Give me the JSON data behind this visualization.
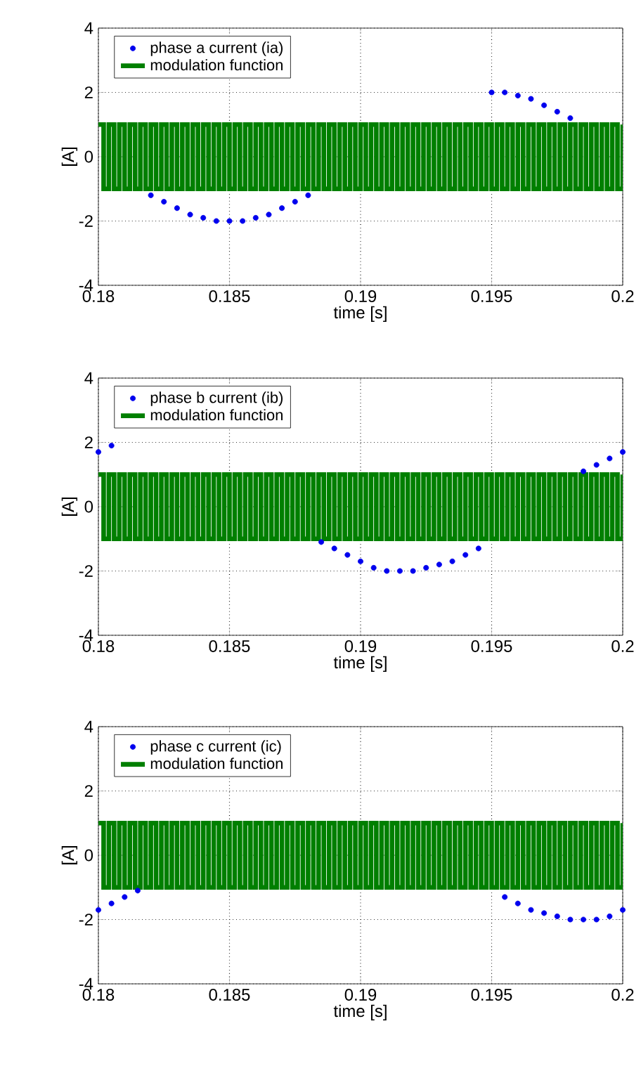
{
  "chart_data": [
    {
      "type": "scatter",
      "xlabel": "time [s]",
      "ylabel": "[A]",
      "xlim": [
        0.18,
        0.2
      ],
      "ylim": [
        -4,
        4
      ],
      "xticks": [
        0.18,
        0.185,
        0.19,
        0.195,
        0.2
      ],
      "yticks": [
        -4,
        -2,
        0,
        2,
        4
      ],
      "grid": true,
      "legend": "top left",
      "series": [
        {
          "name": "phase a current (ia)",
          "color": "#0000ee",
          "marker": "circle",
          "x": [
            0.182,
            0.1825,
            0.183,
            0.1835,
            0.184,
            0.1845,
            0.185,
            0.1855,
            0.186,
            0.1865,
            0.187,
            0.1875,
            0.188,
            0.195,
            0.1955,
            0.196,
            0.1965,
            0.197,
            0.1975,
            0.198
          ],
          "values": [
            -1.2,
            -1.4,
            -1.6,
            -1.8,
            -1.9,
            -2.0,
            -2.0,
            -2.0,
            -1.9,
            -1.8,
            -1.6,
            -1.4,
            -1.2,
            2.0,
            2.0,
            1.9,
            1.8,
            1.6,
            1.4,
            1.2
          ]
        },
        {
          "name": "modulation function",
          "type": "step",
          "color": "#007f00",
          "x": [
            0.18,
            0.1802,
            0.1804,
            0.1806,
            0.1808,
            0.181,
            0.1812,
            0.1814,
            0.1816,
            0.1818,
            0.182,
            0.1822,
            0.1824,
            0.1826,
            0.1828,
            0.183,
            0.1832,
            0.1834,
            0.1836,
            0.1838,
            0.184,
            0.1842,
            0.1844,
            0.1846,
            0.1848,
            0.185,
            0.1852,
            0.1854,
            0.1856,
            0.1858,
            0.186,
            0.1862,
            0.1864,
            0.1866,
            0.1868,
            0.187,
            0.1872,
            0.1874,
            0.1876,
            0.1878,
            0.188,
            0.1882,
            0.1884,
            0.1886,
            0.1888,
            0.189,
            0.1892,
            0.1894,
            0.1896,
            0.1898,
            0.19,
            0.1902,
            0.1904,
            0.1906,
            0.1908,
            0.191,
            0.1912,
            0.1914,
            0.1916,
            0.1918,
            0.192,
            0.1922,
            0.1924,
            0.1926,
            0.1928,
            0.193,
            0.1932,
            0.1934,
            0.1936,
            0.1938,
            0.194,
            0.1942,
            0.1944,
            0.1946,
            0.1948,
            0.195,
            0.1952,
            0.1954,
            0.1956,
            0.1958,
            0.196,
            0.1962,
            0.1964,
            0.1966,
            0.1968,
            0.197,
            0.1972,
            0.1974,
            0.1976,
            0.1978,
            0.198,
            0.1982,
            0.1984,
            0.1986,
            0.1988,
            0.199,
            0.1992,
            0.1994,
            0.1996,
            0.1998,
            0.2
          ],
          "values": [
            1,
            -1,
            1,
            -1,
            1,
            -1,
            1,
            -1,
            1,
            -1,
            1,
            -1,
            1,
            -1,
            1,
            -1,
            1,
            -1,
            1,
            -1,
            1,
            -1,
            1,
            -1,
            1,
            -1,
            1,
            -1,
            1,
            -1,
            1,
            -1,
            1,
            -1,
            1,
            -1,
            1,
            -1,
            1,
            -1,
            1,
            -1,
            1,
            -1,
            1,
            -1,
            1,
            -1,
            1,
            -1,
            1,
            -1,
            1,
            -1,
            1,
            -1,
            1,
            -1,
            1,
            -1,
            1,
            -1,
            1,
            -1,
            1,
            -1,
            1,
            -1,
            1,
            -1,
            1,
            -1,
            1,
            -1,
            1,
            -1,
            1,
            -1,
            1,
            -1,
            1,
            -1,
            1,
            -1,
            1,
            -1,
            1,
            -1,
            1,
            -1,
            1,
            -1,
            1,
            -1,
            1,
            -1,
            1,
            -1,
            1,
            -1,
            1
          ]
        }
      ]
    },
    {
      "type": "scatter",
      "xlabel": "time [s]",
      "ylabel": "[A]",
      "xlim": [
        0.18,
        0.2
      ],
      "ylim": [
        -4,
        4
      ],
      "xticks": [
        0.18,
        0.185,
        0.19,
        0.195,
        0.2
      ],
      "yticks": [
        -4,
        -2,
        0,
        2,
        4
      ],
      "grid": true,
      "legend": "top left",
      "series": [
        {
          "name": "phase b current (ib)",
          "color": "#0000ee",
          "marker": "circle",
          "x": [
            0.18,
            0.1805,
            0.1885,
            0.189,
            0.1895,
            0.19,
            0.1905,
            0.191,
            0.1915,
            0.192,
            0.1925,
            0.193,
            0.1935,
            0.194,
            0.1945,
            0.1985,
            0.199,
            0.1995,
            0.2
          ],
          "values": [
            1.7,
            1.9,
            -1.1,
            -1.3,
            -1.5,
            -1.7,
            -1.9,
            -2.0,
            -2.0,
            -2.0,
            -1.9,
            -1.8,
            -1.7,
            -1.5,
            -1.3,
            1.1,
            1.3,
            1.5,
            1.7
          ]
        },
        {
          "name": "modulation function",
          "type": "step",
          "color": "#007f00",
          "x": [
            0.18,
            0.1802,
            0.1804,
            0.1806,
            0.1808,
            0.181,
            0.1812,
            0.1814,
            0.1816,
            0.1818,
            0.182,
            0.1822,
            0.1824,
            0.1826,
            0.1828,
            0.183,
            0.1832,
            0.1834,
            0.1836,
            0.1838,
            0.184,
            0.1842,
            0.1844,
            0.1846,
            0.1848,
            0.185,
            0.1852,
            0.1854,
            0.1856,
            0.1858,
            0.186,
            0.1862,
            0.1864,
            0.1866,
            0.1868,
            0.187,
            0.1872,
            0.1874,
            0.1876,
            0.1878,
            0.188,
            0.1882,
            0.1884,
            0.1886,
            0.1888,
            0.189,
            0.1892,
            0.1894,
            0.1896,
            0.1898,
            0.19,
            0.1902,
            0.1904,
            0.1906,
            0.1908,
            0.191,
            0.1912,
            0.1914,
            0.1916,
            0.1918,
            0.192,
            0.1922,
            0.1924,
            0.1926,
            0.1928,
            0.193,
            0.1932,
            0.1934,
            0.1936,
            0.1938,
            0.194,
            0.1942,
            0.1944,
            0.1946,
            0.1948,
            0.195,
            0.1952,
            0.1954,
            0.1956,
            0.1958,
            0.196,
            0.1962,
            0.1964,
            0.1966,
            0.1968,
            0.197,
            0.1972,
            0.1974,
            0.1976,
            0.1978,
            0.198,
            0.1982,
            0.1984,
            0.1986,
            0.1988,
            0.199,
            0.1992,
            0.1994,
            0.1996,
            0.1998,
            0.2
          ],
          "values": [
            1,
            -1,
            1,
            -1,
            1,
            -1,
            1,
            -1,
            1,
            -1,
            1,
            -1,
            1,
            -1,
            1,
            -1,
            1,
            -1,
            1,
            -1,
            1,
            -1,
            1,
            -1,
            1,
            -1,
            1,
            -1,
            1,
            -1,
            1,
            -1,
            1,
            -1,
            1,
            -1,
            1,
            -1,
            1,
            -1,
            1,
            -1,
            1,
            -1,
            1,
            -1,
            1,
            -1,
            1,
            -1,
            1,
            -1,
            1,
            -1,
            1,
            -1,
            1,
            -1,
            1,
            -1,
            1,
            -1,
            1,
            -1,
            1,
            -1,
            1,
            -1,
            1,
            -1,
            1,
            -1,
            1,
            -1,
            1,
            -1,
            1,
            -1,
            1,
            -1,
            1,
            -1,
            1,
            -1,
            1,
            -1,
            1,
            -1,
            1,
            -1,
            1,
            -1,
            1,
            -1,
            1,
            -1,
            1,
            -1,
            1,
            -1,
            1
          ]
        }
      ]
    },
    {
      "type": "scatter",
      "xlabel": "time [s]",
      "ylabel": "[A]",
      "xlim": [
        0.18,
        0.2
      ],
      "ylim": [
        -4,
        4
      ],
      "xticks": [
        0.18,
        0.185,
        0.19,
        0.195,
        0.2
      ],
      "yticks": [
        -4,
        -2,
        0,
        2,
        4
      ],
      "grid": true,
      "legend": "top left",
      "series": [
        {
          "name": "phase c current (ic)",
          "color": "#0000ee",
          "marker": "circle",
          "x": [
            0.18,
            0.1805,
            0.181,
            0.1815,
            0.1955,
            0.196,
            0.1965,
            0.197,
            0.1975,
            0.198,
            0.1985,
            0.199,
            0.1995,
            0.2
          ],
          "values": [
            -1.7,
            -1.5,
            -1.3,
            -1.1,
            -1.3,
            -1.5,
            -1.7,
            -1.8,
            -1.9,
            -2.0,
            -2.0,
            -2.0,
            -1.9,
            -1.7
          ]
        },
        {
          "name": "modulation function",
          "type": "step",
          "color": "#007f00",
          "x": [
            0.18,
            0.1802,
            0.1804,
            0.1806,
            0.1808,
            0.181,
            0.1812,
            0.1814,
            0.1816,
            0.1818,
            0.182,
            0.1822,
            0.1824,
            0.1826,
            0.1828,
            0.183,
            0.1832,
            0.1834,
            0.1836,
            0.1838,
            0.184,
            0.1842,
            0.1844,
            0.1846,
            0.1848,
            0.185,
            0.1852,
            0.1854,
            0.1856,
            0.1858,
            0.186,
            0.1862,
            0.1864,
            0.1866,
            0.1868,
            0.187,
            0.1872,
            0.1874,
            0.1876,
            0.1878,
            0.188,
            0.1882,
            0.1884,
            0.1886,
            0.1888,
            0.189,
            0.1892,
            0.1894,
            0.1896,
            0.1898,
            0.19,
            0.1902,
            0.1904,
            0.1906,
            0.1908,
            0.191,
            0.1912,
            0.1914,
            0.1916,
            0.1918,
            0.192,
            0.1922,
            0.1924,
            0.1926,
            0.1928,
            0.193,
            0.1932,
            0.1934,
            0.1936,
            0.1938,
            0.194,
            0.1942,
            0.1944,
            0.1946,
            0.1948,
            0.195,
            0.1952,
            0.1954,
            0.1956,
            0.1958,
            0.196,
            0.1962,
            0.1964,
            0.1966,
            0.1968,
            0.197,
            0.1972,
            0.1974,
            0.1976,
            0.1978,
            0.198,
            0.1982,
            0.1984,
            0.1986,
            0.1988,
            0.199,
            0.1992,
            0.1994,
            0.1996,
            0.1998,
            0.2
          ],
          "values": [
            1,
            -1,
            1,
            -1,
            1,
            -1,
            1,
            -1,
            1,
            -1,
            1,
            -1,
            1,
            -1,
            1,
            -1,
            1,
            -1,
            1,
            -1,
            1,
            -1,
            1,
            -1,
            1,
            -1,
            1,
            -1,
            1,
            -1,
            1,
            -1,
            1,
            -1,
            1,
            -1,
            1,
            -1,
            1,
            -1,
            1,
            -1,
            1,
            -1,
            1,
            -1,
            1,
            -1,
            1,
            -1,
            1,
            -1,
            1,
            -1,
            1,
            -1,
            1,
            -1,
            1,
            -1,
            1,
            -1,
            1,
            -1,
            1,
            -1,
            1,
            -1,
            1,
            -1,
            1,
            -1,
            1,
            -1,
            1,
            -1,
            1,
            -1,
            1,
            -1,
            1,
            -1,
            1,
            -1,
            1,
            -1,
            1,
            -1,
            1,
            -1,
            1,
            -1,
            1,
            -1,
            1,
            -1,
            1,
            -1,
            1,
            -1,
            1
          ]
        }
      ]
    }
  ]
}
